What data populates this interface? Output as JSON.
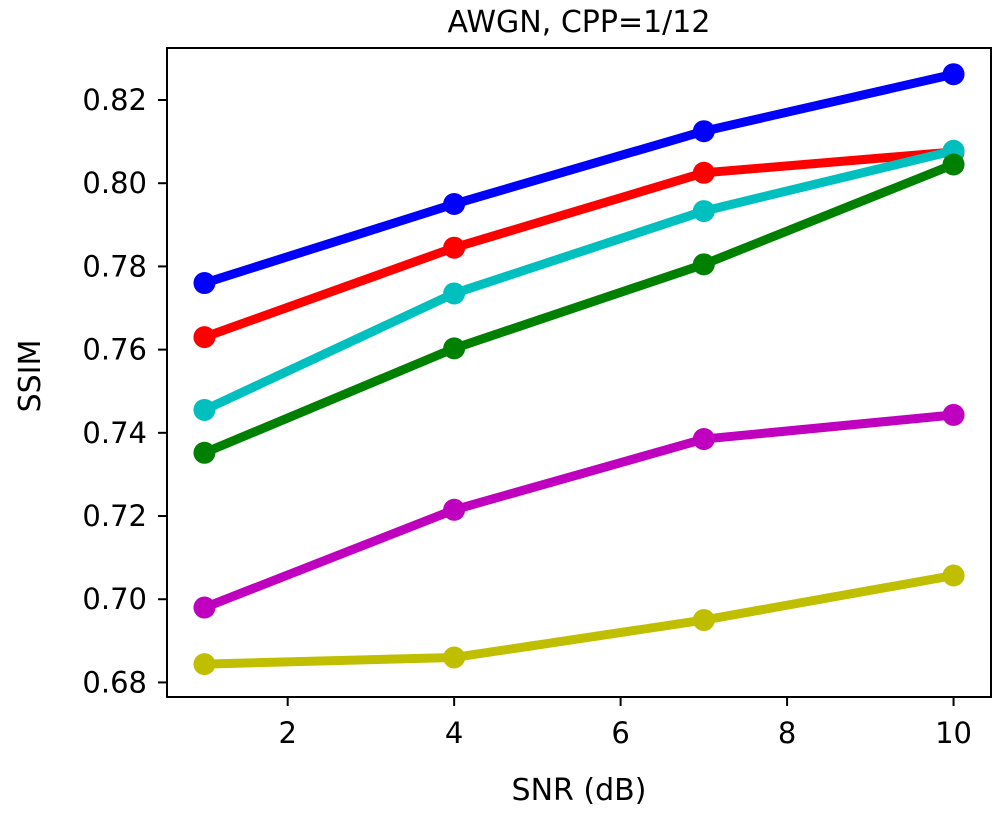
{
  "chart_data": {
    "type": "line",
    "title": "AWGN, CPP=1/12",
    "xlabel": "SNR (dB)",
    "ylabel": "SSIM",
    "x": [
      1,
      4,
      7,
      10
    ],
    "xlim": [
      0.55,
      10.45
    ],
    "ylim": [
      0.6765,
      0.8325
    ],
    "xticks": [
      2,
      4,
      6,
      8,
      10
    ],
    "xtick_labels": [
      "2",
      "4",
      "6",
      "8",
      "10"
    ],
    "yticks": [
      0.68,
      0.7,
      0.72,
      0.74,
      0.76,
      0.78,
      0.8,
      0.82
    ],
    "ytick_labels": [
      "0.68",
      "0.70",
      "0.72",
      "0.74",
      "0.76",
      "0.78",
      "0.80",
      "0.82"
    ],
    "grid": false,
    "legend": "none",
    "series": [
      {
        "name": "blue",
        "color": "#0000ff",
        "values": [
          0.776,
          0.795,
          0.8125,
          0.8262
        ]
      },
      {
        "name": "red",
        "color": "#ff0000",
        "values": [
          0.763,
          0.7845,
          0.8025,
          0.8075
        ]
      },
      {
        "name": "cyan",
        "color": "#00bfbf",
        "values": [
          0.7455,
          0.7735,
          0.7933,
          0.8078
        ]
      },
      {
        "name": "green",
        "color": "#008000",
        "values": [
          0.7352,
          0.7603,
          0.7805,
          0.8045
        ]
      },
      {
        "name": "magenta",
        "color": "#bf00bf",
        "values": [
          0.698,
          0.7215,
          0.7385,
          0.7443
        ]
      },
      {
        "name": "olive",
        "color": "#bfbf00",
        "values": [
          0.6844,
          0.686,
          0.695,
          0.7057
        ]
      }
    ]
  }
}
